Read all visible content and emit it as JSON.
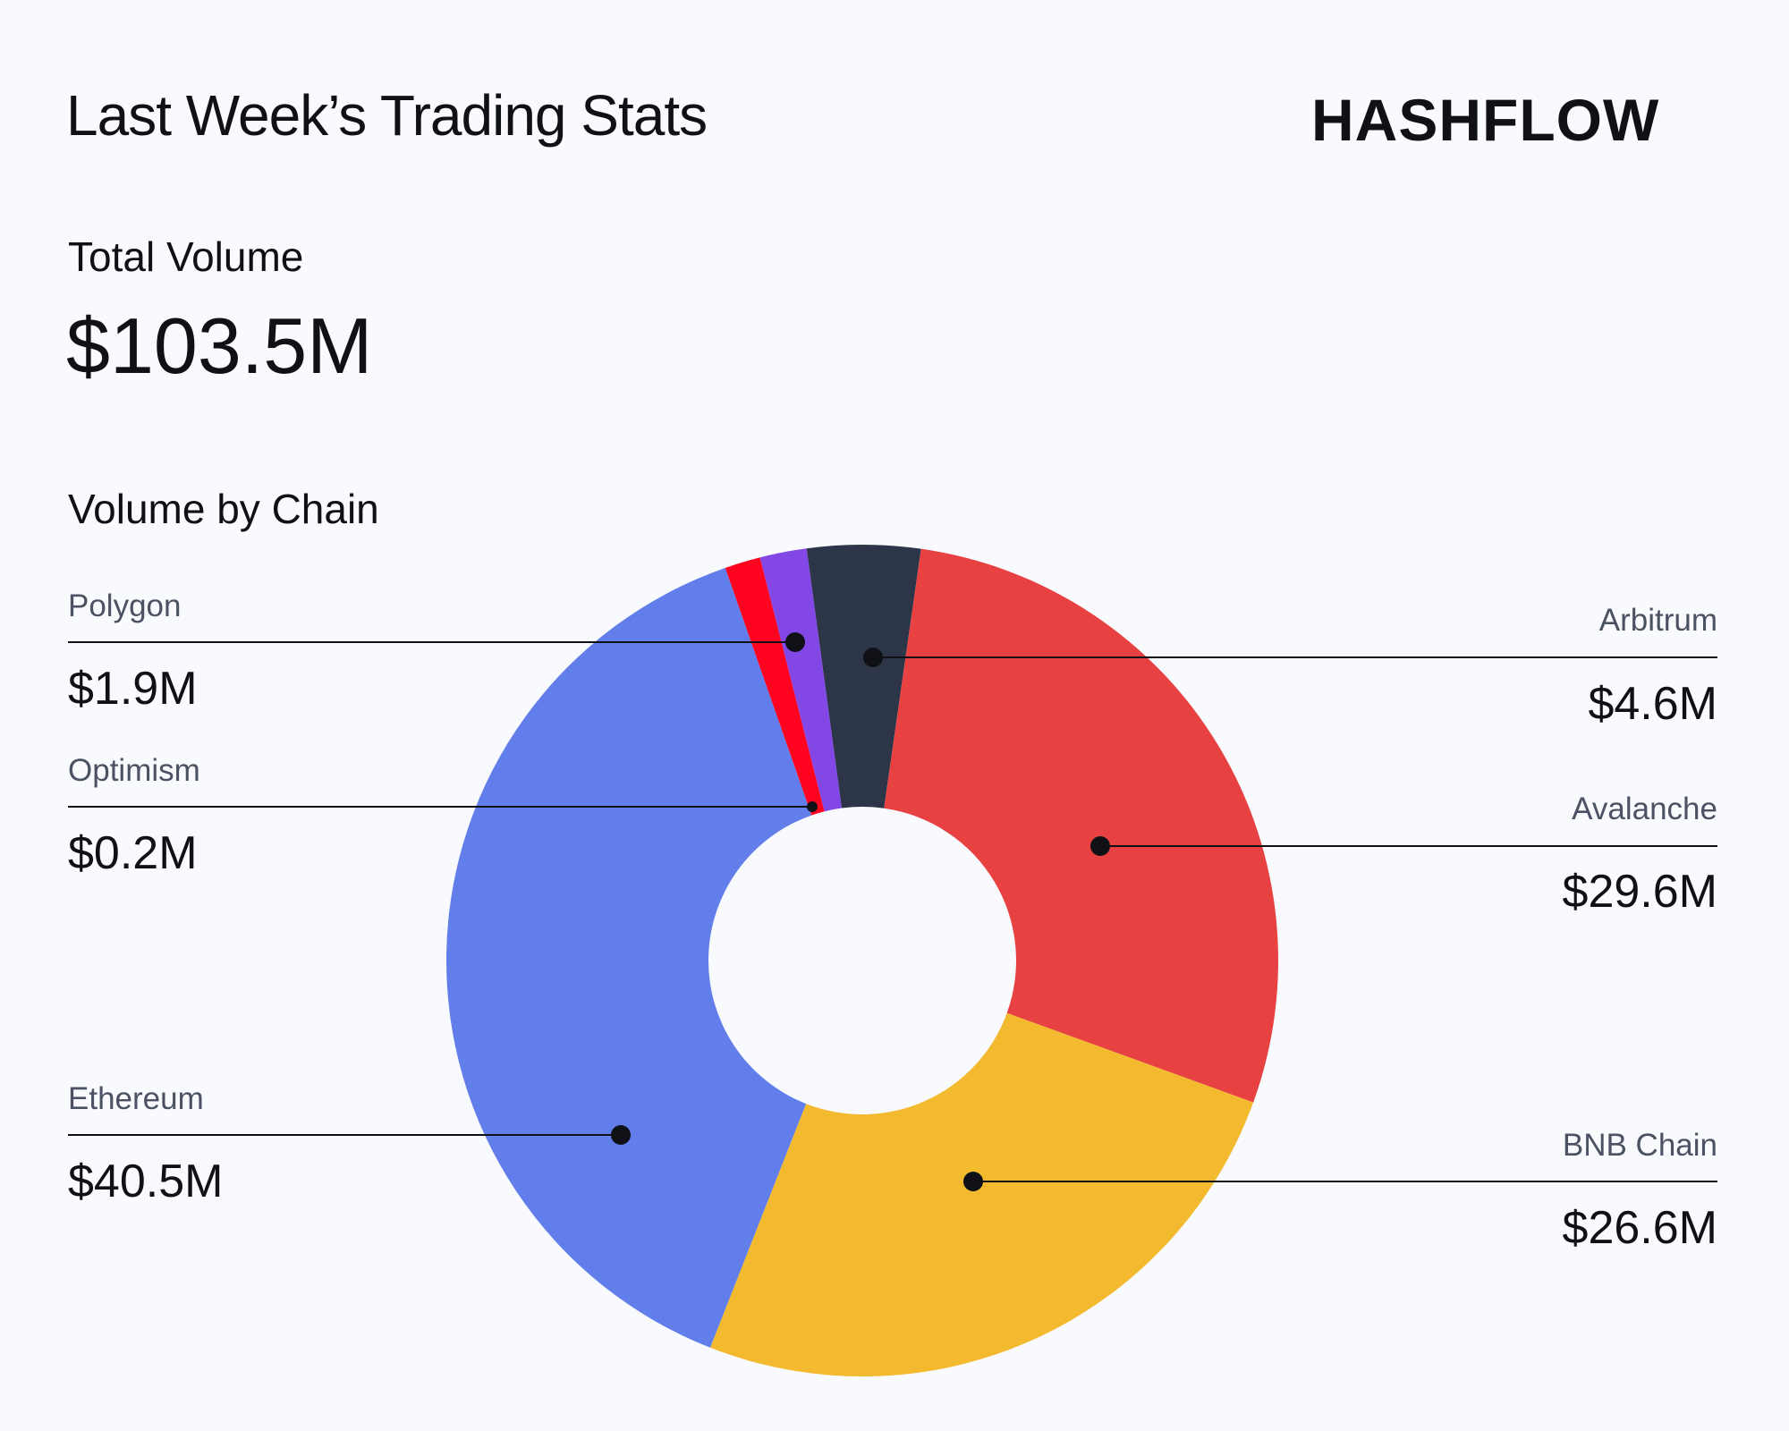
{
  "header": {
    "title": "Last Week’s Trading Stats",
    "logo_text": "HASHFLOW"
  },
  "total": {
    "label": "Total Volume",
    "value": "$103.5M"
  },
  "chart_data": {
    "type": "pie",
    "variant": "donut",
    "title": "Volume by Chain",
    "unit": "$M",
    "categories": [
      "Arbitrum",
      "Avalanche",
      "BNB Chain",
      "Ethereum",
      "Optimism",
      "Polygon"
    ],
    "values": [
      4.6,
      29.6,
      26.6,
      40.5,
      0.2,
      1.9
    ],
    "value_labels": [
      "$4.6M",
      "$29.6M",
      "$26.6M",
      "$40.5M",
      "$0.2M",
      "$1.9M"
    ],
    "colors": [
      "#2d3648",
      "#e84142",
      "#f3ba2f",
      "#627eea",
      "#ff0420",
      "#8247e5"
    ],
    "legend": "callout labels"
  }
}
